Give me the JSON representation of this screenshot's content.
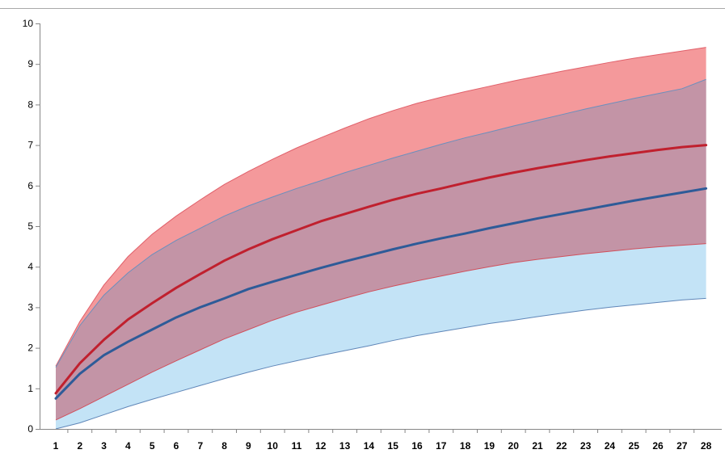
{
  "chart_data": {
    "type": "area",
    "title": "",
    "xlabel": "",
    "ylabel": "",
    "categories": [
      "1",
      "2",
      "3",
      "4",
      "5",
      "6",
      "7",
      "8",
      "9",
      "10",
      "11",
      "12",
      "13",
      "14",
      "15",
      "16",
      "17",
      "18",
      "19",
      "20",
      "21",
      "22",
      "23",
      "24",
      "25",
      "26",
      "27",
      "28"
    ],
    "ylim": [
      0,
      10
    ],
    "y_ticks": [
      "0",
      "1",
      "2",
      "3",
      "4",
      "5",
      "6",
      "7",
      "8",
      "9",
      "10"
    ],
    "grid": false,
    "legend": "none",
    "bands": [
      {
        "color": "#f4999b",
        "upper": [
          1.55,
          2.65,
          3.55,
          4.25,
          4.8,
          5.25,
          5.65,
          6.03,
          6.35,
          6.65,
          6.93,
          7.18,
          7.42,
          7.65,
          7.85,
          8.03,
          8.18,
          8.32,
          8.45,
          8.58,
          8.7,
          8.82,
          8.93,
          9.04,
          9.14,
          9.23,
          9.32,
          9.41
        ],
        "lower": [
          0.22,
          0.5,
          0.8,
          1.1,
          1.4,
          1.68,
          1.95,
          2.22,
          2.45,
          2.68,
          2.88,
          3.05,
          3.22,
          3.38,
          3.52,
          3.65,
          3.77,
          3.89,
          4.0,
          4.1,
          4.18,
          4.25,
          4.32,
          4.38,
          4.44,
          4.49,
          4.53,
          4.57
        ]
      },
      {
        "color": "#c3e3f6",
        "upper": [
          1.52,
          2.55,
          3.3,
          3.85,
          4.3,
          4.65,
          4.95,
          5.25,
          5.5,
          5.72,
          5.93,
          6.12,
          6.32,
          6.5,
          6.68,
          6.85,
          7.02,
          7.18,
          7.32,
          7.47,
          7.61,
          7.75,
          7.89,
          8.02,
          8.15,
          8.27,
          8.39,
          8.62
        ],
        "lower": [
          0.0,
          0.15,
          0.35,
          0.55,
          0.73,
          0.9,
          1.07,
          1.24,
          1.4,
          1.55,
          1.68,
          1.81,
          1.93,
          2.05,
          2.18,
          2.3,
          2.4,
          2.5,
          2.6,
          2.68,
          2.77,
          2.85,
          2.93,
          3.0,
          3.06,
          3.12,
          3.18,
          3.22
        ]
      }
    ],
    "series": [
      {
        "color": "#c0202e",
        "values": [
          0.88,
          1.62,
          2.2,
          2.7,
          3.1,
          3.48,
          3.82,
          4.15,
          4.43,
          4.68,
          4.9,
          5.12,
          5.3,
          5.48,
          5.65,
          5.8,
          5.93,
          6.07,
          6.2,
          6.32,
          6.43,
          6.53,
          6.63,
          6.72,
          6.8,
          6.88,
          6.95,
          7.0
        ]
      },
      {
        "color": "#2e5b98",
        "values": [
          0.75,
          1.36,
          1.82,
          2.15,
          2.45,
          2.75,
          3.0,
          3.22,
          3.45,
          3.63,
          3.8,
          3.97,
          4.13,
          4.28,
          4.43,
          4.57,
          4.7,
          4.82,
          4.95,
          5.07,
          5.19,
          5.3,
          5.41,
          5.52,
          5.63,
          5.73,
          5.83,
          5.93
        ]
      }
    ]
  },
  "colors": {
    "overlap_band": "#c394a6",
    "axis": "#868686",
    "frame_border": "#a9a9a9"
  }
}
